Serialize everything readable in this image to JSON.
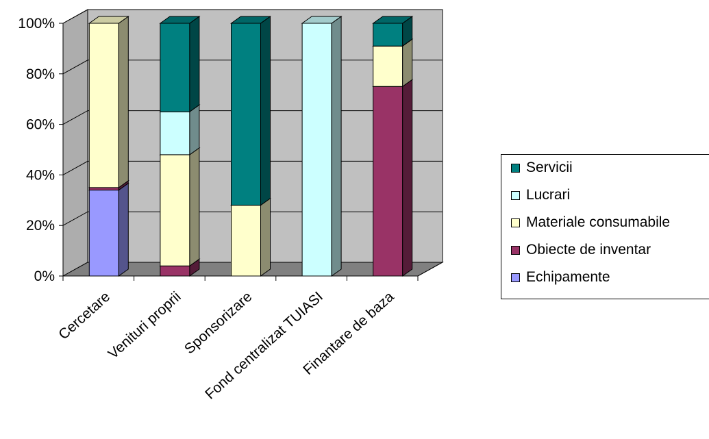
{
  "chart_data": {
    "type": "bar",
    "stacked": "percent",
    "view": "3d",
    "categories": [
      "Cercetare",
      "Venituri proprii",
      "Sponsorizare",
      "Fond centralizat TUIASI",
      "Finantare de baza"
    ],
    "series": [
      {
        "name": "Echipamente",
        "color": "#9999FF",
        "values": [
          34,
          0,
          0,
          0,
          0
        ]
      },
      {
        "name": "Obiecte de inventar",
        "color": "#993366",
        "values": [
          1,
          4,
          0,
          0,
          75
        ]
      },
      {
        "name": "Materiale consumabile",
        "color": "#FFFFCC",
        "values": [
          65,
          44,
          28,
          0,
          16
        ]
      },
      {
        "name": "Lucrari",
        "color": "#CCFFFF",
        "values": [
          0,
          17,
          0,
          100,
          0
        ]
      },
      {
        "name": "Servicii",
        "color": "#008080",
        "values": [
          0,
          35,
          72,
          0,
          9
        ]
      }
    ],
    "y_ticks": [
      "0%",
      "20%",
      "40%",
      "60%",
      "80%",
      "100%"
    ],
    "ylim": [
      0,
      100
    ],
    "grid": true,
    "legend_position": "right",
    "wall_color": "#C0C0C0",
    "floor_color": "#808080"
  }
}
